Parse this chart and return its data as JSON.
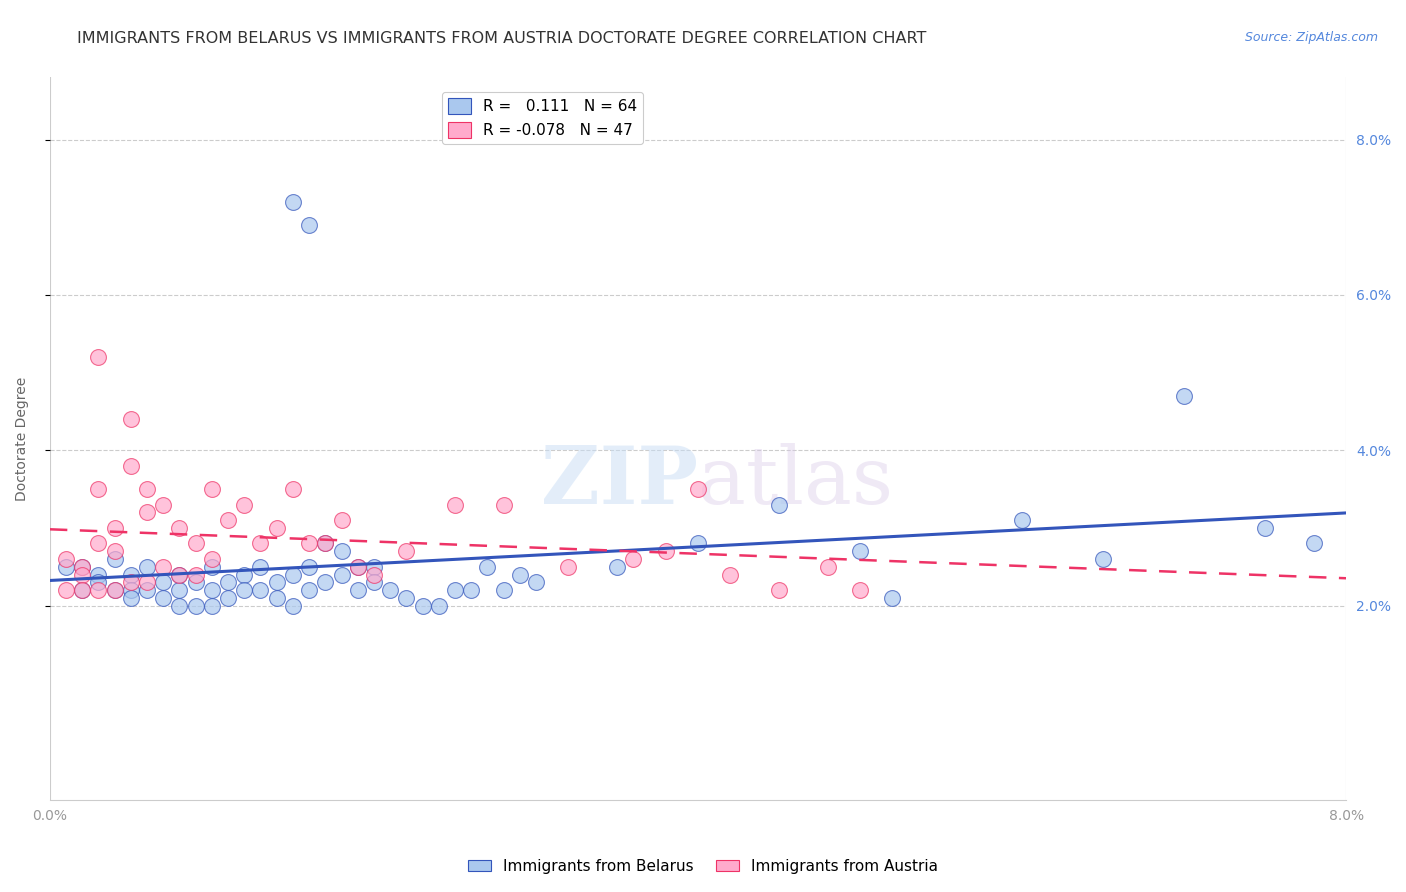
{
  "title": "IMMIGRANTS FROM BELARUS VS IMMIGRANTS FROM AUSTRIA DOCTORATE DEGREE CORRELATION CHART",
  "source": "Source: ZipAtlas.com",
  "ylabel": "Doctorate Degree",
  "right_yticks": [
    "2.0%",
    "4.0%",
    "6.0%",
    "8.0%"
  ],
  "right_ytick_vals": [
    0.02,
    0.04,
    0.06,
    0.08
  ],
  "xmin": 0.0,
  "xmax": 0.08,
  "ymin": -0.005,
  "ymax": 0.088,
  "series1_label": "Immigrants from Belarus",
  "series2_label": "Immigrants from Austria",
  "series1_color": "#aac8ee",
  "series2_color": "#ffaacc",
  "trendline1_color": "#3355bb",
  "trendline2_color": "#ee3366",
  "watermark_zip": "ZIP",
  "watermark_atlas": "atlas",
  "title_fontsize": 11.5,
  "axis_label_fontsize": 10,
  "tick_fontsize": 10,
  "source_fontsize": 9,
  "belarus_x": [
    0.001,
    0.002,
    0.002,
    0.003,
    0.003,
    0.004,
    0.004,
    0.005,
    0.005,
    0.005,
    0.006,
    0.006,
    0.007,
    0.007,
    0.008,
    0.008,
    0.008,
    0.009,
    0.009,
    0.01,
    0.01,
    0.01,
    0.011,
    0.011,
    0.012,
    0.012,
    0.013,
    0.013,
    0.014,
    0.014,
    0.015,
    0.015,
    0.016,
    0.016,
    0.017,
    0.017,
    0.018,
    0.018,
    0.019,
    0.019,
    0.02,
    0.02,
    0.021,
    0.022,
    0.023,
    0.024,
    0.025,
    0.026,
    0.027,
    0.028,
    0.029,
    0.03,
    0.035,
    0.04,
    0.045,
    0.05,
    0.052,
    0.06,
    0.065,
    0.07,
    0.075,
    0.078,
    0.015,
    0.016
  ],
  "belarus_y": [
    0.025,
    0.025,
    0.022,
    0.024,
    0.023,
    0.026,
    0.022,
    0.024,
    0.022,
    0.021,
    0.025,
    0.022,
    0.023,
    0.021,
    0.024,
    0.022,
    0.02,
    0.023,
    0.02,
    0.025,
    0.022,
    0.02,
    0.023,
    0.021,
    0.024,
    0.022,
    0.025,
    0.022,
    0.023,
    0.021,
    0.024,
    0.02,
    0.025,
    0.022,
    0.028,
    0.023,
    0.027,
    0.024,
    0.025,
    0.022,
    0.025,
    0.023,
    0.022,
    0.021,
    0.02,
    0.02,
    0.022,
    0.022,
    0.025,
    0.022,
    0.024,
    0.023,
    0.025,
    0.028,
    0.033,
    0.027,
    0.021,
    0.031,
    0.026,
    0.047,
    0.03,
    0.028,
    0.072,
    0.069
  ],
  "austria_x": [
    0.001,
    0.001,
    0.002,
    0.002,
    0.002,
    0.003,
    0.003,
    0.003,
    0.004,
    0.004,
    0.004,
    0.005,
    0.005,
    0.005,
    0.006,
    0.006,
    0.006,
    0.007,
    0.007,
    0.008,
    0.008,
    0.009,
    0.009,
    0.01,
    0.01,
    0.011,
    0.012,
    0.013,
    0.014,
    0.015,
    0.016,
    0.017,
    0.018,
    0.019,
    0.02,
    0.022,
    0.025,
    0.028,
    0.032,
    0.036,
    0.038,
    0.04,
    0.042,
    0.045,
    0.048,
    0.05,
    0.003
  ],
  "austria_y": [
    0.026,
    0.022,
    0.025,
    0.024,
    0.022,
    0.035,
    0.028,
    0.022,
    0.03,
    0.027,
    0.022,
    0.044,
    0.038,
    0.023,
    0.035,
    0.032,
    0.023,
    0.033,
    0.025,
    0.03,
    0.024,
    0.028,
    0.024,
    0.035,
    0.026,
    0.031,
    0.033,
    0.028,
    0.03,
    0.035,
    0.028,
    0.028,
    0.031,
    0.025,
    0.024,
    0.027,
    0.033,
    0.033,
    0.025,
    0.026,
    0.027,
    0.035,
    0.024,
    0.022,
    0.025,
    0.022,
    0.052
  ]
}
